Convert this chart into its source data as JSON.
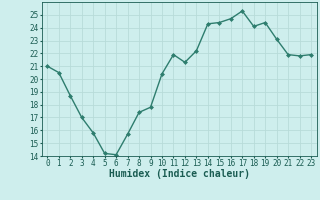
{
  "x": [
    0,
    1,
    2,
    3,
    4,
    5,
    6,
    7,
    8,
    9,
    10,
    11,
    12,
    13,
    14,
    15,
    16,
    17,
    18,
    19,
    20,
    21,
    22,
    23
  ],
  "y": [
    21.0,
    20.5,
    18.7,
    17.0,
    15.8,
    14.2,
    14.1,
    15.7,
    17.4,
    17.8,
    20.4,
    21.9,
    21.3,
    22.2,
    24.3,
    24.4,
    24.7,
    25.3,
    24.1,
    24.4,
    23.1,
    21.9,
    21.8,
    21.9
  ],
  "line_color": "#2e7d6e",
  "marker": "D",
  "marker_size": 2.0,
  "bg_color": "#ceeeed",
  "grid_color": "#b8dbd9",
  "xlabel": "Humidex (Indice chaleur)",
  "ylim": [
    14,
    26
  ],
  "yticks": [
    14,
    15,
    16,
    17,
    18,
    19,
    20,
    21,
    22,
    23,
    24,
    25
  ],
  "xticks": [
    0,
    1,
    2,
    3,
    4,
    5,
    6,
    7,
    8,
    9,
    10,
    11,
    12,
    13,
    14,
    15,
    16,
    17,
    18,
    19,
    20,
    21,
    22,
    23
  ],
  "text_color": "#1a5c52",
  "tick_fontsize": 5.5,
  "label_fontsize": 7.0,
  "linewidth": 1.0
}
